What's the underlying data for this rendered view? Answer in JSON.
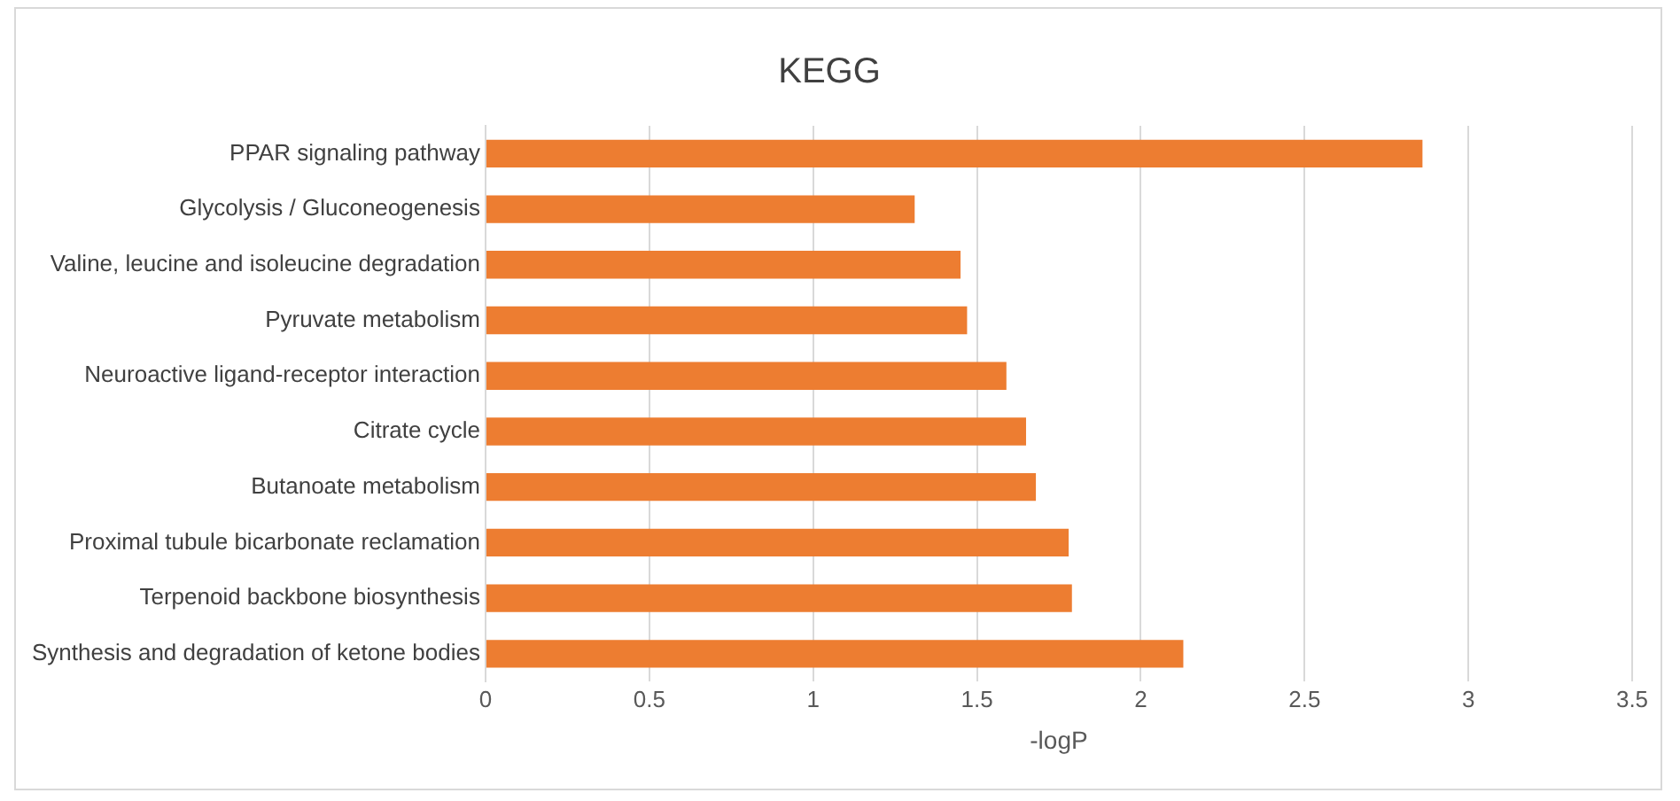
{
  "chart_data": {
    "type": "bar",
    "orientation": "horizontal",
    "title": "KEGG",
    "xlabel": "-logP",
    "categories": [
      "PPAR signaling pathway",
      "Glycolysis / Gluconeogenesis",
      "Valine, leucine and isoleucine degradation",
      "Pyruvate metabolism",
      "Neuroactive ligand-receptor interaction",
      "Citrate cycle",
      "Butanoate metabolism",
      "Proximal tubule bicarbonate reclamation",
      "Terpenoid backbone biosynthesis",
      "Synthesis and degradation of ketone bodies"
    ],
    "values": [
      2.86,
      1.31,
      1.45,
      1.47,
      1.59,
      1.65,
      1.68,
      1.78,
      1.79,
      2.13
    ],
    "color": "#ed7d31",
    "xlim": [
      0,
      3.5
    ],
    "xticks": [
      0,
      0.5,
      1,
      1.5,
      2,
      2.5,
      3,
      3.5
    ],
    "grid": "x"
  }
}
